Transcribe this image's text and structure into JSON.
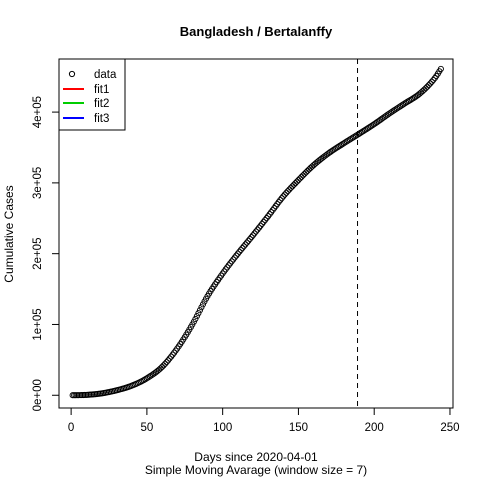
{
  "chart_data": {
    "type": "scatter",
    "title": "Bangladesh / Bertalanffy",
    "xlabel": "Days since 2020-04-01",
    "xlabel2": "Simple Moving Avarage (window size = 7)",
    "ylabel": "Cumulative Cases",
    "xlim": [
      -8,
      252
    ],
    "ylim": [
      -18000,
      475000
    ],
    "xticks": [
      0,
      50,
      100,
      150,
      200,
      250
    ],
    "xtick_labels": [
      "0",
      "50",
      "100",
      "150",
      "200",
      "250"
    ],
    "yticks": [
      0,
      100000,
      200000,
      300000,
      400000
    ],
    "ytick_labels": [
      "0e+00",
      "1e+05",
      "2e+05",
      "3e+05",
      "4e+05"
    ],
    "vline_x": 189,
    "legend": {
      "position": "top-left",
      "entries": [
        {
          "label": "data",
          "kind": "point",
          "color": "#000000"
        },
        {
          "label": "fit1",
          "kind": "line",
          "color": "#ff0000"
        },
        {
          "label": "fit2",
          "kind": "line",
          "color": "#00cd00"
        },
        {
          "label": "fit3",
          "kind": "line",
          "color": "#0000ff"
        }
      ]
    },
    "series": [
      {
        "name": "data",
        "x_start": 1,
        "x_end": 244,
        "x_step": 1,
        "anchors_x": [
          1,
          10,
          20,
          30,
          40,
          50,
          60,
          70,
          80,
          90,
          100,
          110,
          120,
          130,
          140,
          150,
          160,
          170,
          180,
          189,
          200,
          210,
          220,
          230,
          240,
          244
        ],
        "anchors_y": [
          50,
          500,
          2600,
          7000,
          13500,
          24000,
          40000,
          66000,
          100000,
          140000,
          172000,
          200000,
          226000,
          253000,
          281000,
          304000,
          325000,
          342000,
          356000,
          368000,
          383000,
          398000,
          412000,
          426000,
          448000,
          461000
        ]
      }
    ]
  }
}
